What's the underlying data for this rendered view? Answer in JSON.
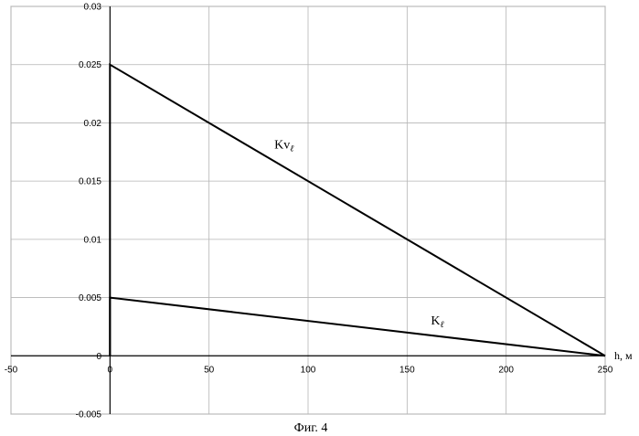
{
  "chart_data": {
    "type": "line",
    "title": "",
    "xlabel": "h, м",
    "ylabel": "",
    "xlim": [
      -50,
      250
    ],
    "ylim": [
      -0.005,
      0.03
    ],
    "x_ticks": [
      "-50",
      "0",
      "50",
      "100",
      "150",
      "200",
      "250"
    ],
    "y_ticks": [
      "-0.005",
      "0",
      "0.005",
      "0.01",
      "0.015",
      "0.02",
      "0.025",
      "0.03"
    ],
    "grid": true,
    "legend": "none",
    "series": [
      {
        "name": "Kv",
        "subscript": "ℓ",
        "x": [
          0,
          0,
          250
        ],
        "y": [
          0,
          0.025,
          0
        ]
      },
      {
        "name": "K",
        "subscript": "ℓ",
        "x": [
          0,
          0,
          250
        ],
        "y": [
          0,
          0.005,
          0
        ]
      }
    ],
    "series_label_positions": [
      {
        "x": 83,
        "y": 0.0178
      },
      {
        "x": 162,
        "y": 0.0027
      }
    ],
    "caption": "Фиг. 4"
  }
}
